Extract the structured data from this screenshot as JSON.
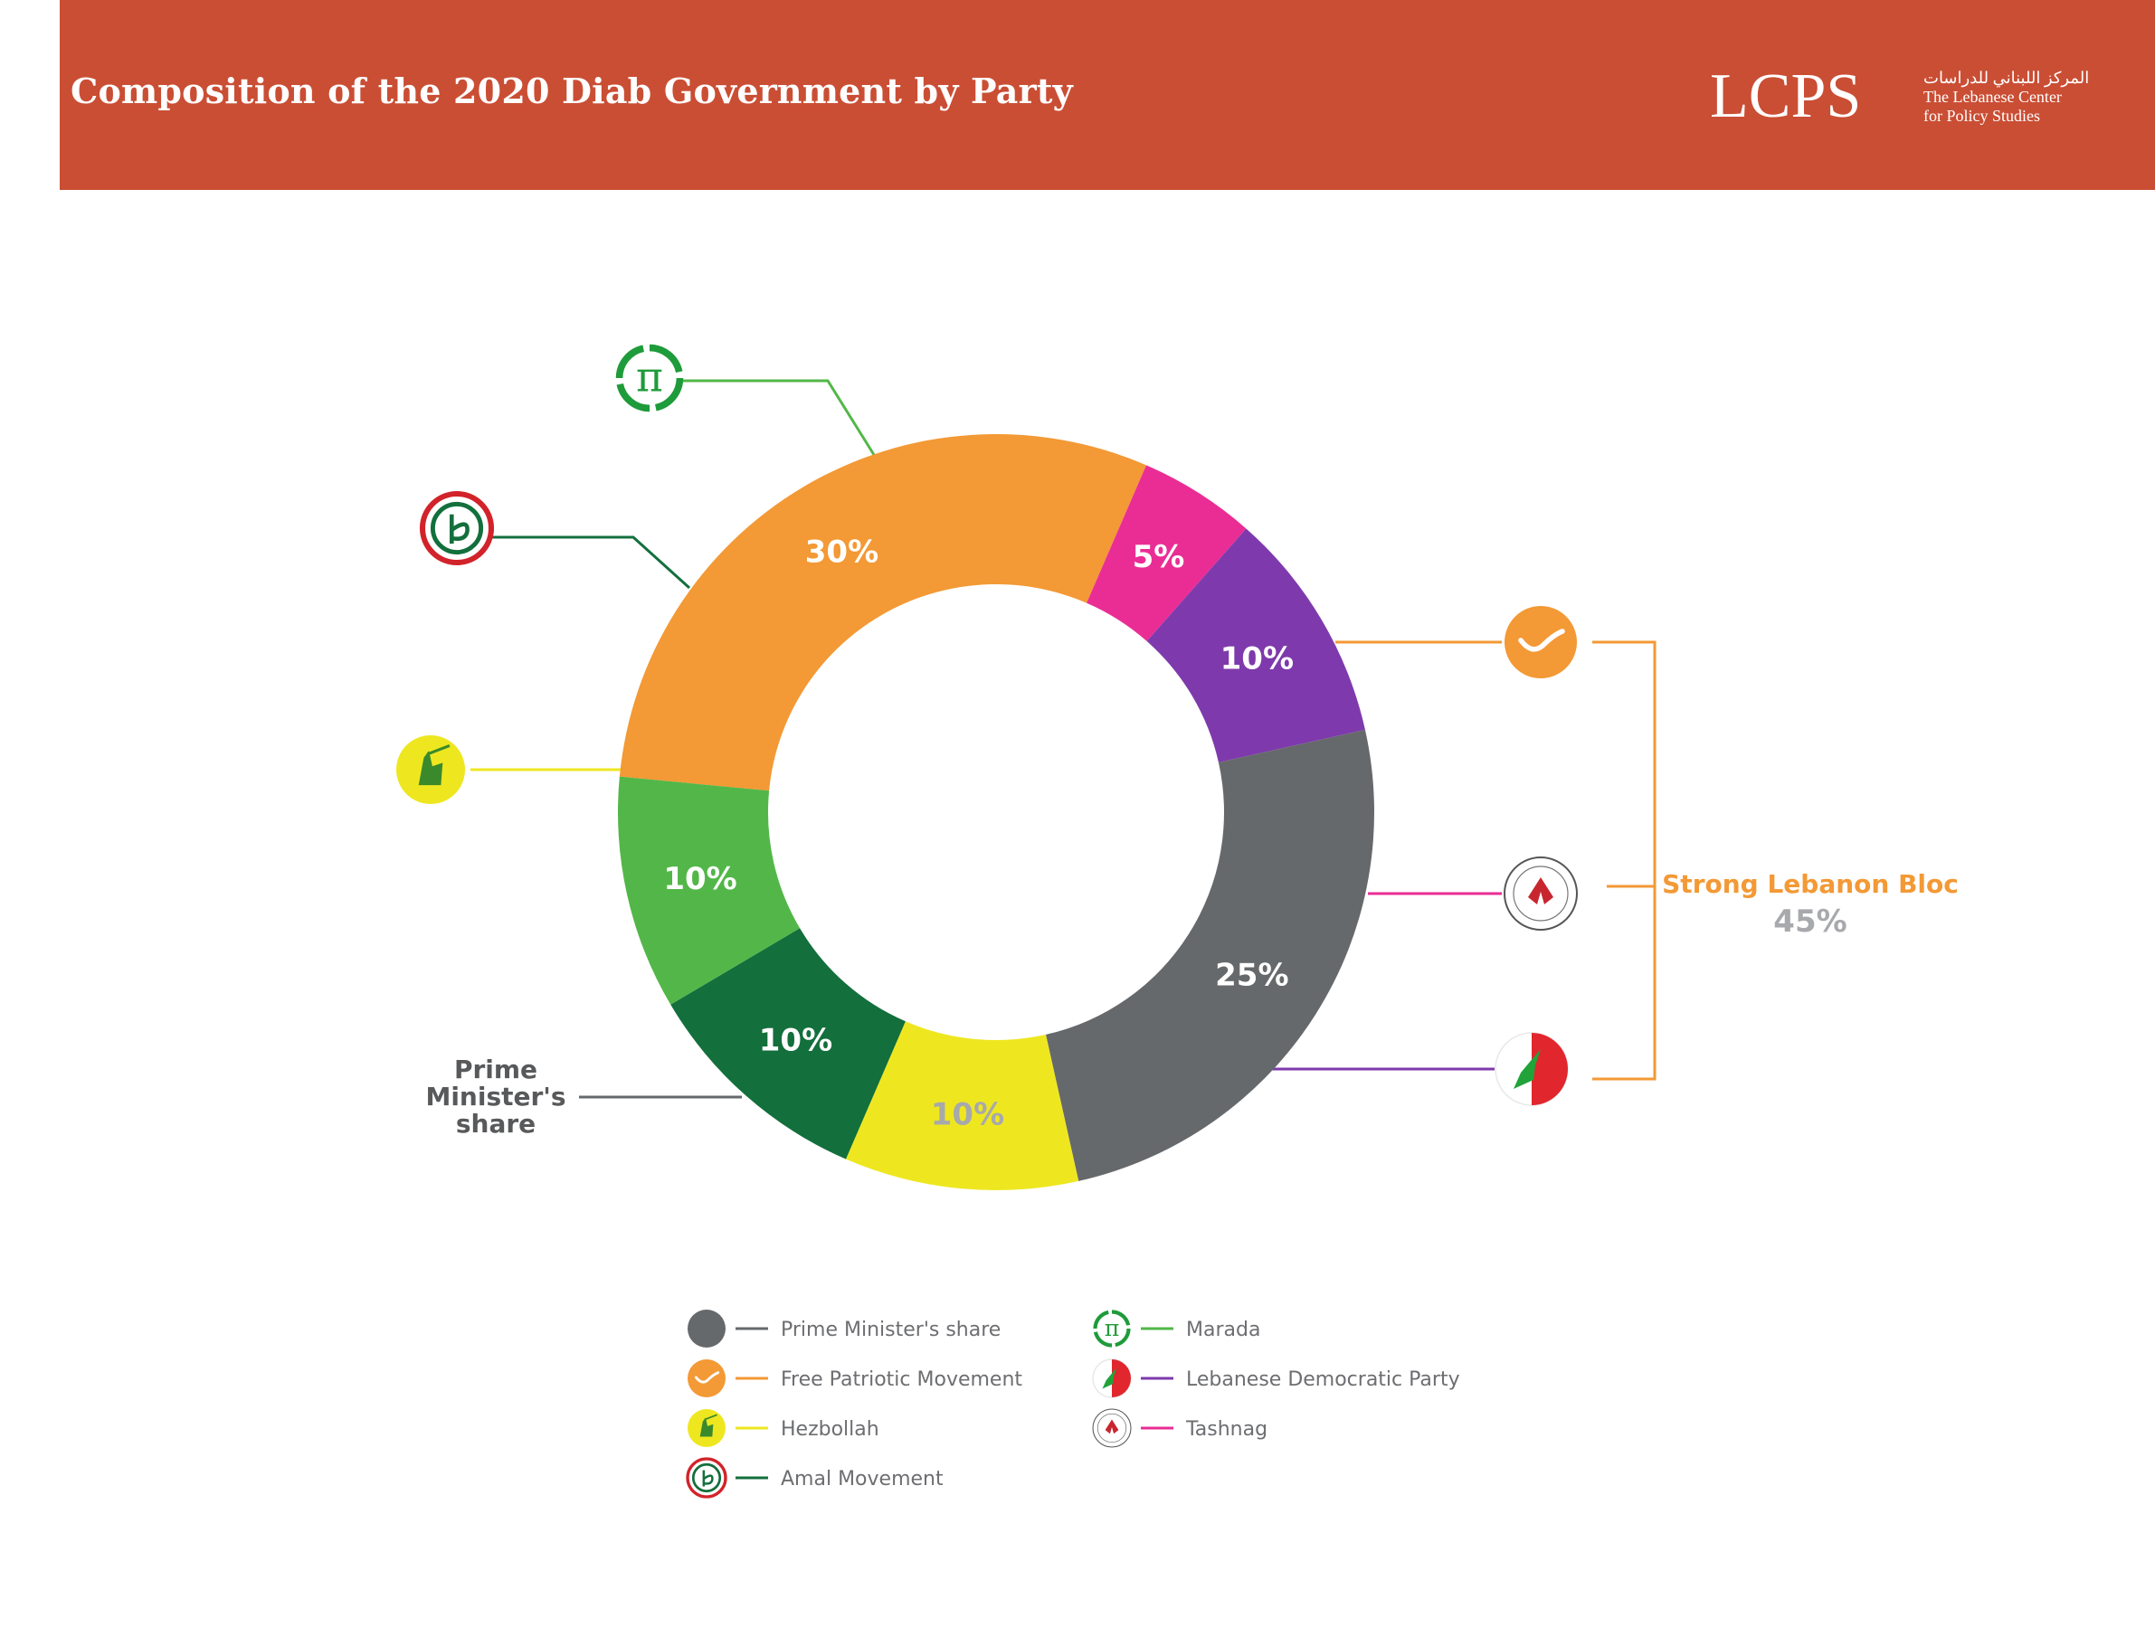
{
  "title": "Composition of the 2020 Diab Government by Party",
  "brand": {
    "name": "LCPS",
    "arabic": "المركز اللبناني للدراسات",
    "line1": "The Lebanese Center",
    "line2": "for Policy Studies"
  },
  "colors": {
    "header": "#ca4e34",
    "prime_minister": "#66696b",
    "fpm": "#f39935",
    "tashnag": "#ea2d95",
    "ldp": "#7e3aac",
    "hezbollah": "#eee720",
    "amal": "#136f3c",
    "marada": "#52b748",
    "bloc": "#f39935"
  },
  "chart_data": {
    "type": "donut",
    "series": [
      {
        "name": "Free Patriotic Movement",
        "value": 30,
        "label": "30%",
        "color": "#f39935",
        "icon": "fpm-logo-icon"
      },
      {
        "name": "Tashnag",
        "value": 5,
        "label": "5%",
        "color": "#ea2d95",
        "icon": "tashnag-logo-icon"
      },
      {
        "name": "Lebanese Democratic Party",
        "value": 10,
        "label": "10%",
        "color": "#7e3aac",
        "icon": "ldp-logo-icon"
      },
      {
        "name": "Prime Minister's share",
        "value": 25,
        "label": "25%",
        "color": "#66696b",
        "icon": "grey-circle-icon"
      },
      {
        "name": "Hezbollah",
        "value": 10,
        "label": "10%",
        "color": "#eee720",
        "icon": "hezbollah-logo-icon"
      },
      {
        "name": "Amal Movement",
        "value": 10,
        "label": "10%",
        "color": "#136f3c",
        "icon": "amal-logo-icon"
      },
      {
        "name": "Marada",
        "value": 10,
        "label": "10%",
        "color": "#52b748",
        "icon": "marada-logo-icon"
      }
    ],
    "callout_prime_minister": [
      "Prime",
      "Minister's",
      "share"
    ],
    "bloc": {
      "name": "Strong Lebanon Bloc",
      "value": "45%",
      "members": [
        "Free Patriotic Movement",
        "Tashnag",
        "Lebanese Democratic Party"
      ]
    }
  },
  "legend": {
    "left": [
      {
        "label": "Prime Minister's share",
        "icon": "grey-circle-icon",
        "color": "#66696b"
      },
      {
        "label": "Free Patriotic Movement",
        "icon": "fpm-logo-icon",
        "color": "#f39935"
      },
      {
        "label": "Hezbollah",
        "icon": "hezbollah-logo-icon",
        "color": "#eee720"
      },
      {
        "label": "Amal Movement",
        "icon": "amal-logo-icon",
        "color": "#136f3c"
      }
    ],
    "right": [
      {
        "label": "Marada",
        "icon": "marada-logo-icon",
        "color": "#52b748"
      },
      {
        "label": "Lebanese Democratic Party",
        "icon": "ldp-logo-icon",
        "color": "#7e3aac"
      },
      {
        "label": "Tashnag",
        "icon": "tashnag-logo-icon",
        "color": "#ea2d95"
      }
    ]
  }
}
